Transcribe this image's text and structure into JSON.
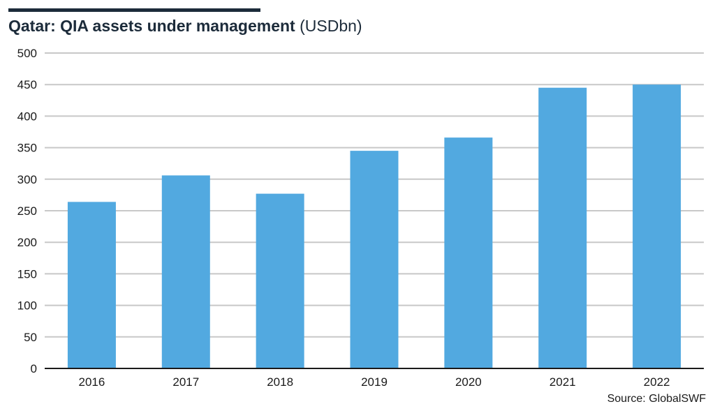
{
  "title": {
    "main": "Qatar: QIA assets under management",
    "unit": "(USDbn)"
  },
  "source": "Source: GlobalSWF",
  "colors": {
    "bar": "#52a9e0",
    "grid": "#c8c8c8",
    "axis": "#1a1a1a",
    "title": "#1c2b3a"
  },
  "chart_data": {
    "type": "bar",
    "title": "Qatar: QIA assets under management (USDbn)",
    "xlabel": "",
    "ylabel": "",
    "categories": [
      "2016",
      "2017",
      "2018",
      "2019",
      "2020",
      "2021",
      "2022"
    ],
    "values": [
      264,
      306,
      277,
      345,
      366,
      445,
      450
    ],
    "ylim": [
      0,
      500
    ],
    "yticks": [
      0,
      50,
      100,
      150,
      200,
      250,
      300,
      350,
      400,
      450,
      500
    ],
    "grid": true,
    "legend": "none"
  }
}
